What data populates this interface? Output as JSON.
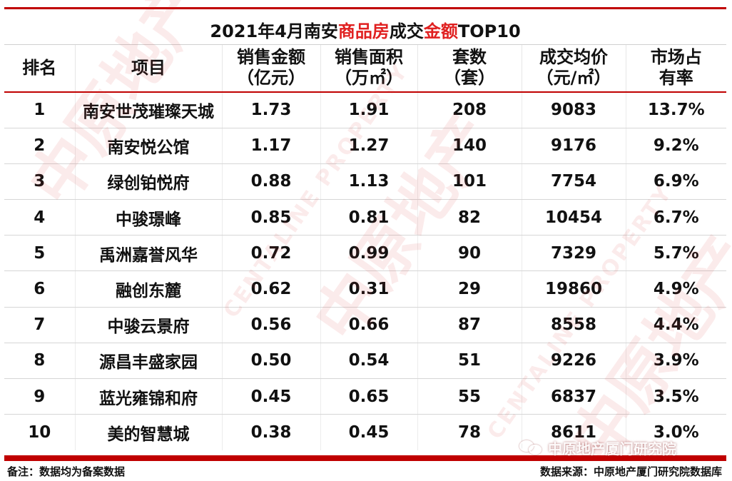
{
  "title": {
    "part1": "2021年4月南安",
    "highlight1": "商品房",
    "part2": "成交",
    "highlight2": "金额",
    "part3": "TOP10"
  },
  "headers": {
    "rank": "排名",
    "project": "项目",
    "amount_line1": "销售金额",
    "amount_line2": "（亿元）",
    "area_line1": "销售面积",
    "area_line2": "（万㎡）",
    "units_line1": "套数",
    "units_line2": "（套）",
    "price_line1": "成交均价",
    "price_line2": "（元/㎡）",
    "share_line1": "市场占",
    "share_line2": "有率"
  },
  "rows": [
    {
      "rank": "1",
      "project": "南安世茂璀璨天城",
      "amount": "1.73",
      "area": "1.91",
      "units": "208",
      "price": "9083",
      "share": "13.7%"
    },
    {
      "rank": "2",
      "project": "南安悦公馆",
      "amount": "1.17",
      "area": "1.27",
      "units": "140",
      "price": "9176",
      "share": "9.2%"
    },
    {
      "rank": "3",
      "project": "绿创铂悦府",
      "amount": "0.88",
      "area": "1.13",
      "units": "101",
      "price": "7754",
      "share": "6.9%"
    },
    {
      "rank": "4",
      "project": "中骏璟峰",
      "amount": "0.85",
      "area": "0.81",
      "units": "82",
      "price": "10454",
      "share": "6.7%"
    },
    {
      "rank": "5",
      "project": "禹洲嘉誉风华",
      "amount": "0.72",
      "area": "0.99",
      "units": "90",
      "price": "7329",
      "share": "5.7%"
    },
    {
      "rank": "6",
      "project": "融创东麓",
      "amount": "0.62",
      "area": "0.31",
      "units": "29",
      "price": "19860",
      "share": "4.9%"
    },
    {
      "rank": "7",
      "project": "中骏云景府",
      "amount": "0.56",
      "area": "0.66",
      "units": "87",
      "price": "8558",
      "share": "4.4%"
    },
    {
      "rank": "8",
      "project": "源昌丰盛家园",
      "amount": "0.50",
      "area": "0.54",
      "units": "51",
      "price": "9226",
      "share": "3.9%"
    },
    {
      "rank": "9",
      "project": "蓝光雍锦和府",
      "amount": "0.45",
      "area": "0.65",
      "units": "55",
      "price": "6837",
      "share": "3.5%"
    },
    {
      "rank": "10",
      "project": "美的智慧城",
      "amount": "0.38",
      "area": "0.45",
      "units": "78",
      "price": "8611",
      "share": "3.0%"
    }
  ],
  "footer": {
    "note": "备注：数据均为备案数据",
    "source": "数据来源：中原地产厦门研究院数据库",
    "wechat_label": "中原地产厦门研究院"
  },
  "watermark": {
    "cn": "中原地产",
    "en": "CENTALINE PROPERTY"
  },
  "colors": {
    "accent": "#c00000",
    "highlight": "#e02020"
  }
}
